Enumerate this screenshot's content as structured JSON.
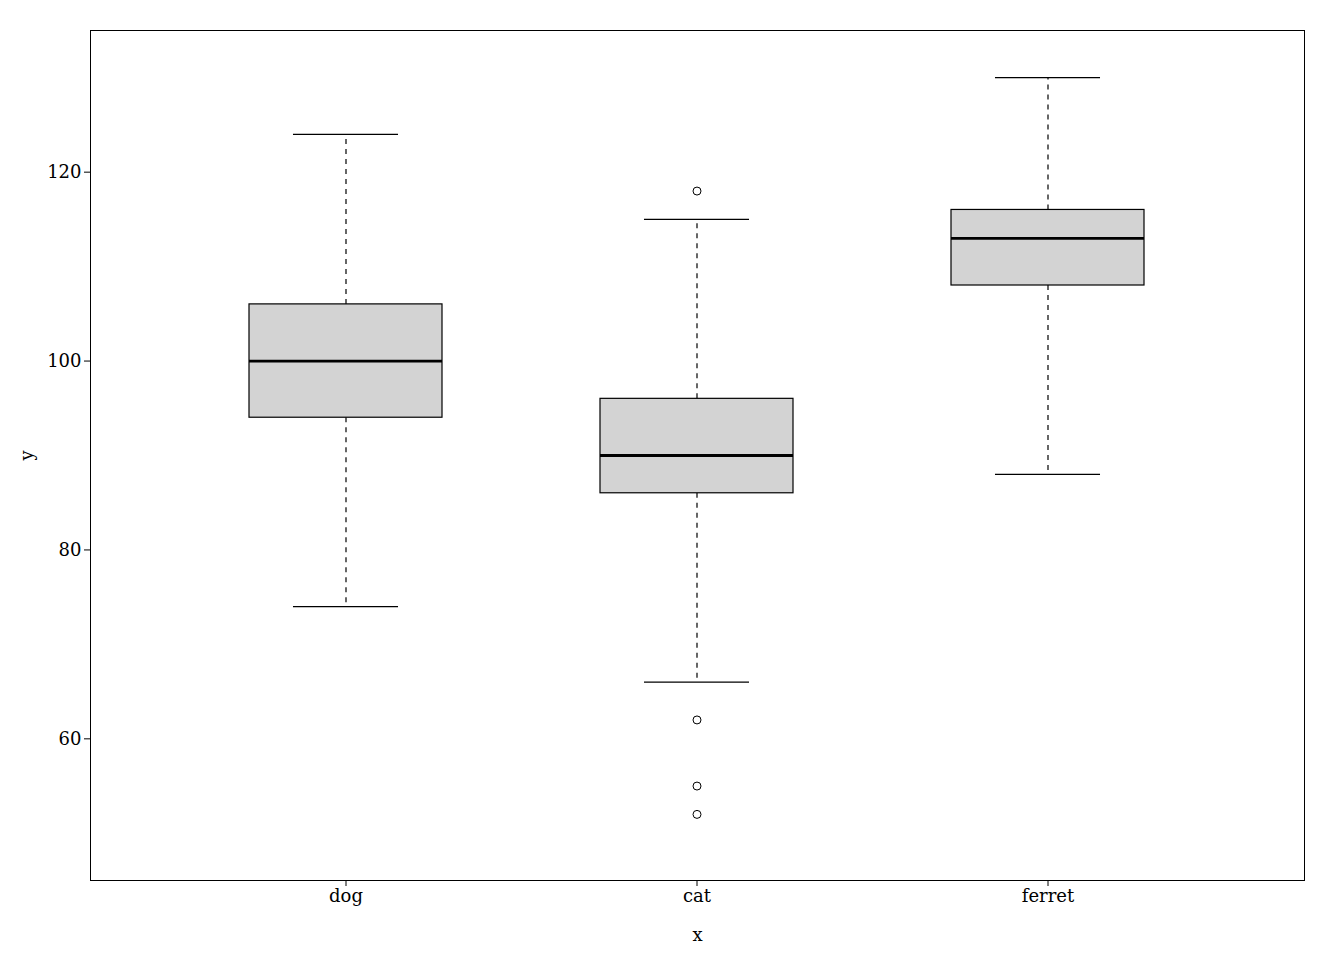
{
  "chart_data": {
    "type": "box",
    "categories": [
      "dog",
      "cat",
      "ferret"
    ],
    "xlabel": "x",
    "ylabel": "y",
    "color": "#d3d3d3",
    "q1": [
      94,
      86,
      108
    ],
    "median": [
      100,
      90,
      113
    ],
    "q3": [
      106,
      96,
      116
    ],
    "whisker_low": [
      74,
      66,
      88
    ],
    "whisker_high": [
      124,
      115,
      130
    ],
    "outliers": [
      [],
      [
        62,
        55,
        52,
        118
      ],
      []
    ],
    "ylim": [
      45,
      135
    ],
    "yticks": [
      60,
      80,
      100,
      120
    ],
    "grid": false
  }
}
